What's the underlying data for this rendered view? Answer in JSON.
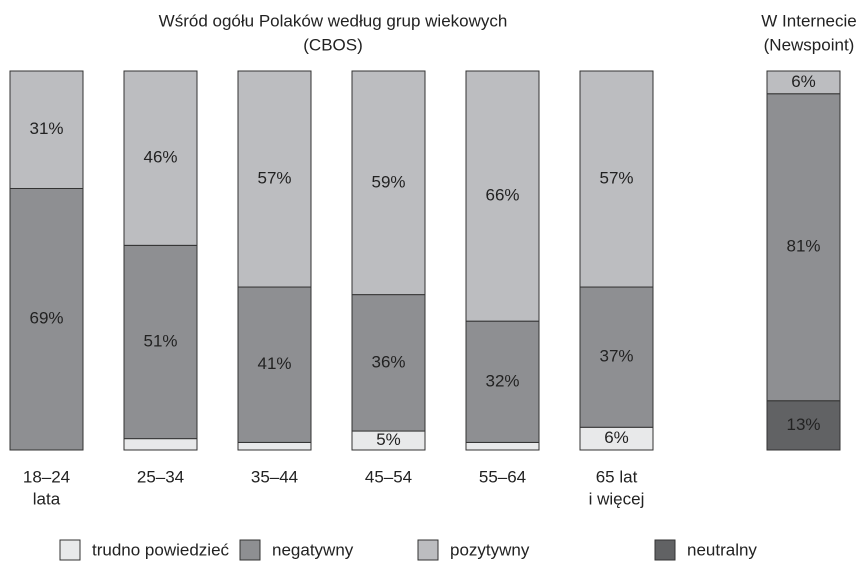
{
  "chart_data": [
    {
      "type": "stacked-bar",
      "title": "Wśród ogółu Polaków według grup wiekowych",
      "subtitle": "(CBOS)",
      "categories": [
        [
          "18–24",
          "lata"
        ],
        [
          "25–34"
        ],
        [
          "35–44"
        ],
        [
          "45–54"
        ],
        [
          "55–64"
        ],
        [
          "65 lat",
          "i więcej"
        ]
      ],
      "ylim": [
        0,
        100
      ],
      "series": [
        {
          "name": "trudno powiedzieć",
          "color": "#e8e9ea",
          "values": [
            null,
            3,
            2,
            5,
            2,
            6
          ],
          "value_labels": [
            null,
            "3%",
            "2%",
            "5%",
            "2%",
            "6%"
          ]
        },
        {
          "name": "negatywny",
          "color": "#8e8f92",
          "values": [
            69,
            51,
            41,
            36,
            32,
            37
          ],
          "value_labels": [
            "69%",
            "51%",
            "41%",
            "36%",
            "32%",
            "37%"
          ]
        },
        {
          "name": "pozytywny",
          "color": "#bcbdc0",
          "values": [
            31,
            46,
            57,
            59,
            66,
            57
          ],
          "value_labels": [
            "31%",
            "46%",
            "57%",
            "59%",
            "66%",
            "57%"
          ]
        }
      ]
    },
    {
      "type": "stacked-bar",
      "title": "W Internecie",
      "subtitle": "(Newspoint)",
      "categories": [
        null
      ],
      "ylim": [
        0,
        100
      ],
      "series": [
        {
          "name": "neutralny",
          "color": "#616264",
          "values": [
            13
          ],
          "value_labels": [
            "13%"
          ]
        },
        {
          "name": "negatywny",
          "color": "#8e8f92",
          "values": [
            81
          ],
          "value_labels": [
            "81%"
          ]
        },
        {
          "name": "pozytywny",
          "color": "#bcbdc0",
          "values": [
            6
          ],
          "value_labels": [
            "6%"
          ]
        }
      ]
    }
  ]
}
